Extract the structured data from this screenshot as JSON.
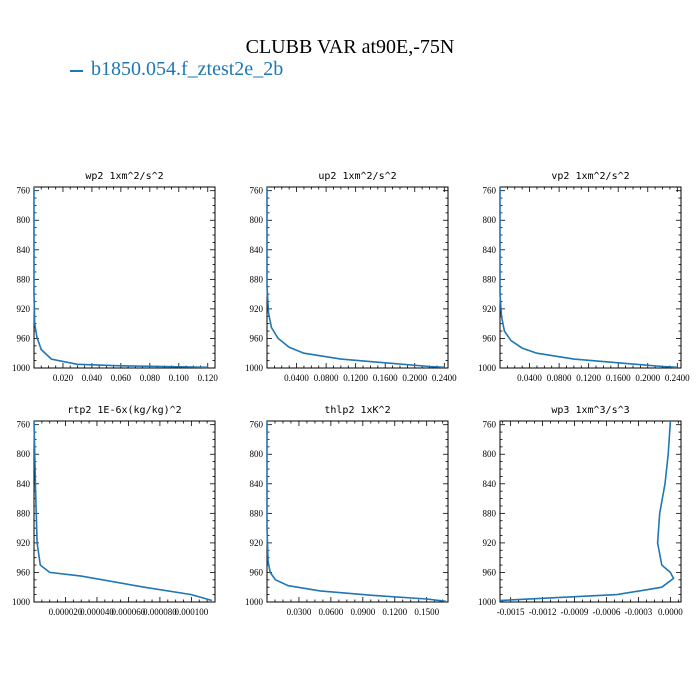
{
  "title": "CLUBB VAR at90E,-75N",
  "legend": {
    "label": "b1850.054.f_ztest2e_2b"
  },
  "colors": {
    "series": "#1f77b4",
    "axis": "#000000"
  },
  "chart_data": [
    {
      "type": "line",
      "title": "wp2  1xm^2/s^2",
      "xlim": [
        0,
        0.125
      ],
      "ylim": [
        1000,
        755
      ],
      "y_inverted": true,
      "xticks": [
        0.02,
        0.04,
        0.06,
        0.08,
        0.1,
        0.12
      ],
      "xtick_labels": [
        "0.020",
        "0.040",
        "0.060",
        "0.080",
        "0.100",
        "0.120"
      ],
      "yticks": [
        760,
        800,
        840,
        880,
        920,
        960,
        1000
      ],
      "ytick_labels": [
        "760",
        "800",
        "840",
        "880",
        "920",
        "960",
        "1000"
      ],
      "series": [
        {
          "x": [
            0.0,
            0.0,
            0.0005,
            0.002,
            0.005,
            0.012,
            0.03,
            0.06,
            0.09,
            0.12
          ],
          "y": [
            755,
            900,
            940,
            958,
            975,
            988,
            995,
            997,
            998,
            999
          ]
        }
      ]
    },
    {
      "type": "line",
      "title": "up2  1xm^2/s^2",
      "xlim": [
        0,
        0.245
      ],
      "ylim": [
        1000,
        755
      ],
      "y_inverted": true,
      "xticks": [
        0.04,
        0.08,
        0.12,
        0.16,
        0.2,
        0.24
      ],
      "xtick_labels": [
        "0.0400",
        "0.0800",
        "0.1200",
        "0.1600",
        "0.2000",
        "0.2400"
      ],
      "yticks": [
        760,
        800,
        840,
        880,
        920,
        960,
        1000
      ],
      "ytick_labels": [
        "760",
        "800",
        "840",
        "880",
        "920",
        "960",
        "1000"
      ],
      "series": [
        {
          "x": [
            0.0,
            0.0,
            0.002,
            0.006,
            0.015,
            0.03,
            0.05,
            0.1,
            0.16,
            0.22,
            0.24
          ],
          "y": [
            755,
            890,
            925,
            945,
            960,
            972,
            980,
            988,
            993,
            998,
            999
          ]
        }
      ]
    },
    {
      "type": "line",
      "title": "vp2  1xm^2/s^2",
      "xlim": [
        0,
        0.245
      ],
      "ylim": [
        1000,
        755
      ],
      "y_inverted": true,
      "xticks": [
        0.04,
        0.08,
        0.12,
        0.16,
        0.2,
        0.24
      ],
      "xtick_labels": [
        "0.0400",
        "0.0800",
        "0.1200",
        "0.1600",
        "0.2000",
        "0.2400"
      ],
      "yticks": [
        760,
        800,
        840,
        880,
        920,
        960,
        1000
      ],
      "ytick_labels": [
        "760",
        "800",
        "840",
        "880",
        "920",
        "960",
        "1000"
      ],
      "series": [
        {
          "x": [
            0.0,
            0.0,
            0.002,
            0.006,
            0.015,
            0.03,
            0.05,
            0.1,
            0.16,
            0.22,
            0.24
          ],
          "y": [
            755,
            900,
            930,
            950,
            963,
            973,
            980,
            988,
            993,
            998,
            999
          ]
        }
      ]
    },
    {
      "type": "line",
      "title": "rtp2  1E-6x(kg/kg)^2",
      "xlim": [
        0,
        0.000115
      ],
      "ylim": [
        1000,
        755
      ],
      "y_inverted": true,
      "xticks": [
        2e-05,
        4e-05,
        6e-05,
        8e-05,
        0.0001
      ],
      "xtick_labels": [
        "0.000020",
        "0.000040",
        "0.000060",
        "0.000080",
        "0.000100"
      ],
      "yticks": [
        760,
        800,
        840,
        880,
        920,
        960,
        1000
      ],
      "ytick_labels": [
        "760",
        "800",
        "840",
        "880",
        "920",
        "960",
        "1000"
      ],
      "series": [
        {
          "x": [
            0.0,
            1e-06,
            2e-06,
            4e-06,
            1e-05,
            3e-05,
            7e-05,
            0.0001,
            0.000113
          ],
          "y": [
            755,
            850,
            920,
            950,
            960,
            965,
            980,
            990,
            998
          ]
        }
      ]
    },
    {
      "type": "line",
      "title": "thlp2  1xK^2",
      "xlim": [
        0,
        0.17
      ],
      "ylim": [
        1000,
        755
      ],
      "y_inverted": true,
      "xticks": [
        0.03,
        0.06,
        0.09,
        0.12,
        0.15
      ],
      "xtick_labels": [
        "0.0300",
        "0.0600",
        "0.0900",
        "0.1200",
        "0.1500"
      ],
      "yticks": [
        760,
        800,
        840,
        880,
        920,
        960,
        1000
      ],
      "ytick_labels": [
        "760",
        "800",
        "840",
        "880",
        "920",
        "960",
        "1000"
      ],
      "series": [
        {
          "x": [
            0.0,
            0.0,
            0.001,
            0.003,
            0.008,
            0.02,
            0.05,
            0.1,
            0.15,
            0.168
          ],
          "y": [
            755,
            900,
            945,
            960,
            970,
            978,
            985,
            991,
            996,
            999
          ]
        }
      ]
    },
    {
      "type": "line",
      "title": "wp3  1xm^3/s^3",
      "xlim": [
        -0.0016,
        0.0001
      ],
      "ylim": [
        1000,
        755
      ],
      "y_inverted": true,
      "xticks": [
        -0.0015,
        -0.0012,
        -0.0009,
        -0.0006,
        -0.0003,
        0.0
      ],
      "xtick_labels": [
        "-0.0015",
        "-0.0012",
        "-0.0009",
        "-0.0006",
        "-0.0003",
        "0.0000"
      ],
      "yticks": [
        760,
        800,
        840,
        880,
        920,
        960,
        1000
      ],
      "ytick_labels": [
        "760",
        "800",
        "840",
        "880",
        "920",
        "960",
        "1000"
      ],
      "series": [
        {
          "x": [
            0.0,
            -2e-05,
            -5e-05,
            -0.0001,
            -0.00012,
            -8e-05,
            0.0,
            3e-05,
            -8e-05,
            -0.0005,
            -0.0012,
            -0.0016
          ],
          "y": [
            755,
            800,
            840,
            880,
            920,
            950,
            960,
            968,
            980,
            990,
            995,
            998
          ]
        }
      ]
    }
  ]
}
